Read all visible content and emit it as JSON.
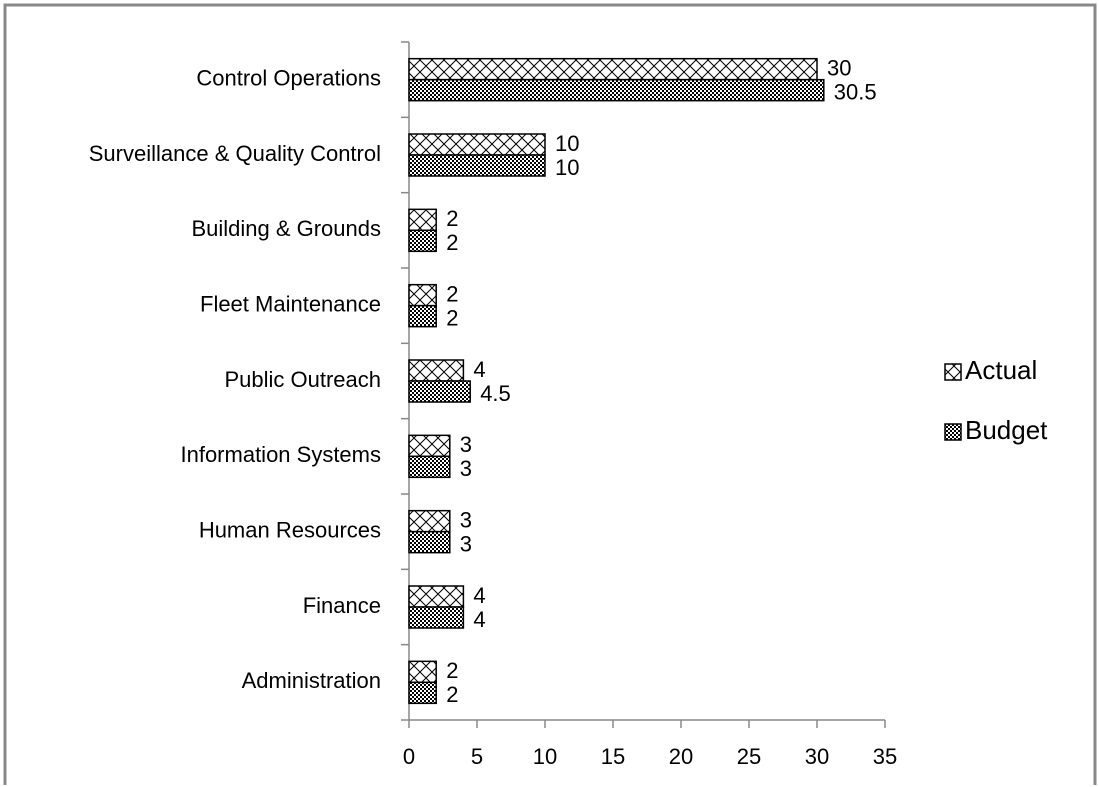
{
  "chart_data": {
    "type": "barh",
    "categories": [
      "Control Operations",
      "Surveillance & Quality Control",
      "Building & Grounds",
      "Fleet Maintenance",
      "Public Outreach",
      "Information Systems",
      "Human Resources",
      "Finance",
      "Administration"
    ],
    "series": [
      {
        "name": "Actual",
        "color": "#000000",
        "pattern": "diagonal-cross",
        "values": [
          30,
          10,
          2,
          2,
          4,
          3,
          3,
          4,
          2
        ]
      },
      {
        "name": "Budget",
        "color": "#000000",
        "pattern": "checker",
        "values": [
          30.5,
          10,
          2,
          2,
          4.5,
          3,
          3,
          4,
          2
        ]
      }
    ],
    "xlim": [
      0,
      35
    ],
    "xticks": [
      0,
      5,
      10,
      15,
      20,
      25,
      30,
      35
    ],
    "legend": "right"
  }
}
